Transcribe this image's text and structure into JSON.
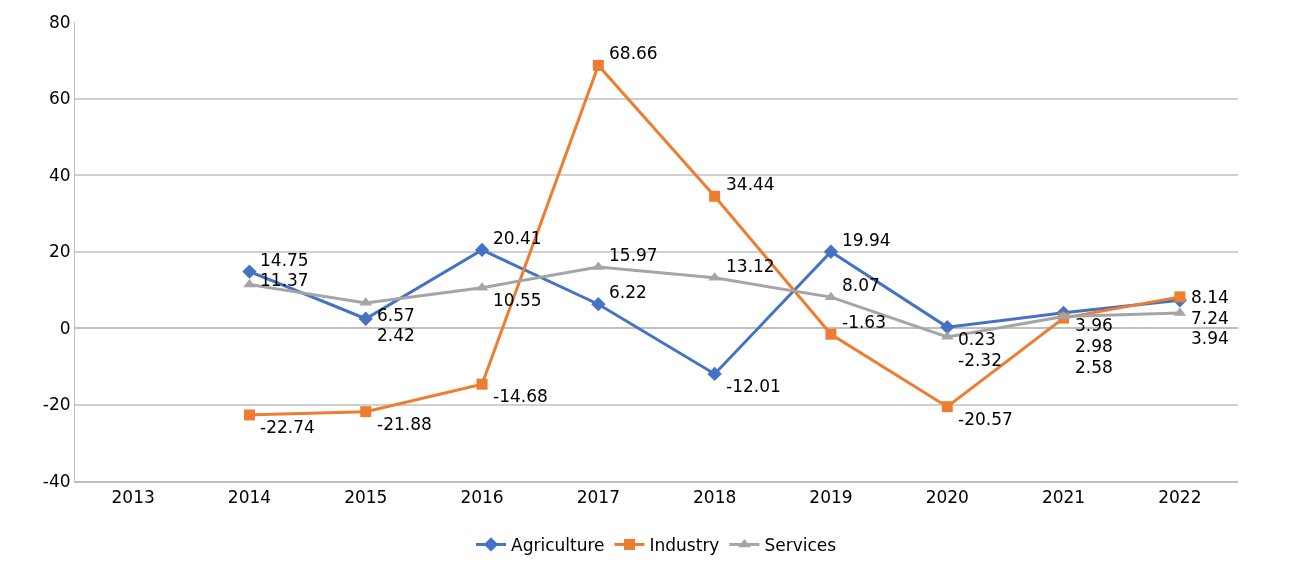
{
  "chart_data": {
    "type": "line",
    "categories": [
      "2013",
      "2014",
      "2015",
      "2016",
      "2017",
      "2018",
      "2019",
      "2020",
      "2021",
      "2022"
    ],
    "series": [
      {
        "name": "Agriculture",
        "color": "#4472c4",
        "marker": "diamond",
        "values": [
          null,
          14.75,
          2.42,
          20.41,
          6.22,
          -12.01,
          19.94,
          0.23,
          3.96,
          7.24
        ]
      },
      {
        "name": "Industry",
        "color": "#ed7d31",
        "marker": "square",
        "values": [
          null,
          -22.74,
          -21.88,
          -14.68,
          68.66,
          34.44,
          -1.63,
          -20.57,
          2.58,
          8.14
        ]
      },
      {
        "name": "Services",
        "color": "#a5a5a5",
        "marker": "triangle",
        "values": [
          null,
          11.37,
          6.57,
          10.55,
          15.97,
          13.12,
          8.07,
          -2.32,
          2.98,
          3.94
        ]
      }
    ],
    "ylim": [
      -40,
      80
    ],
    "yticks": [
      -40,
      -20,
      0,
      20,
      40,
      60,
      80
    ],
    "grid": "y",
    "legend": "bottom",
    "data_labels": true
  }
}
